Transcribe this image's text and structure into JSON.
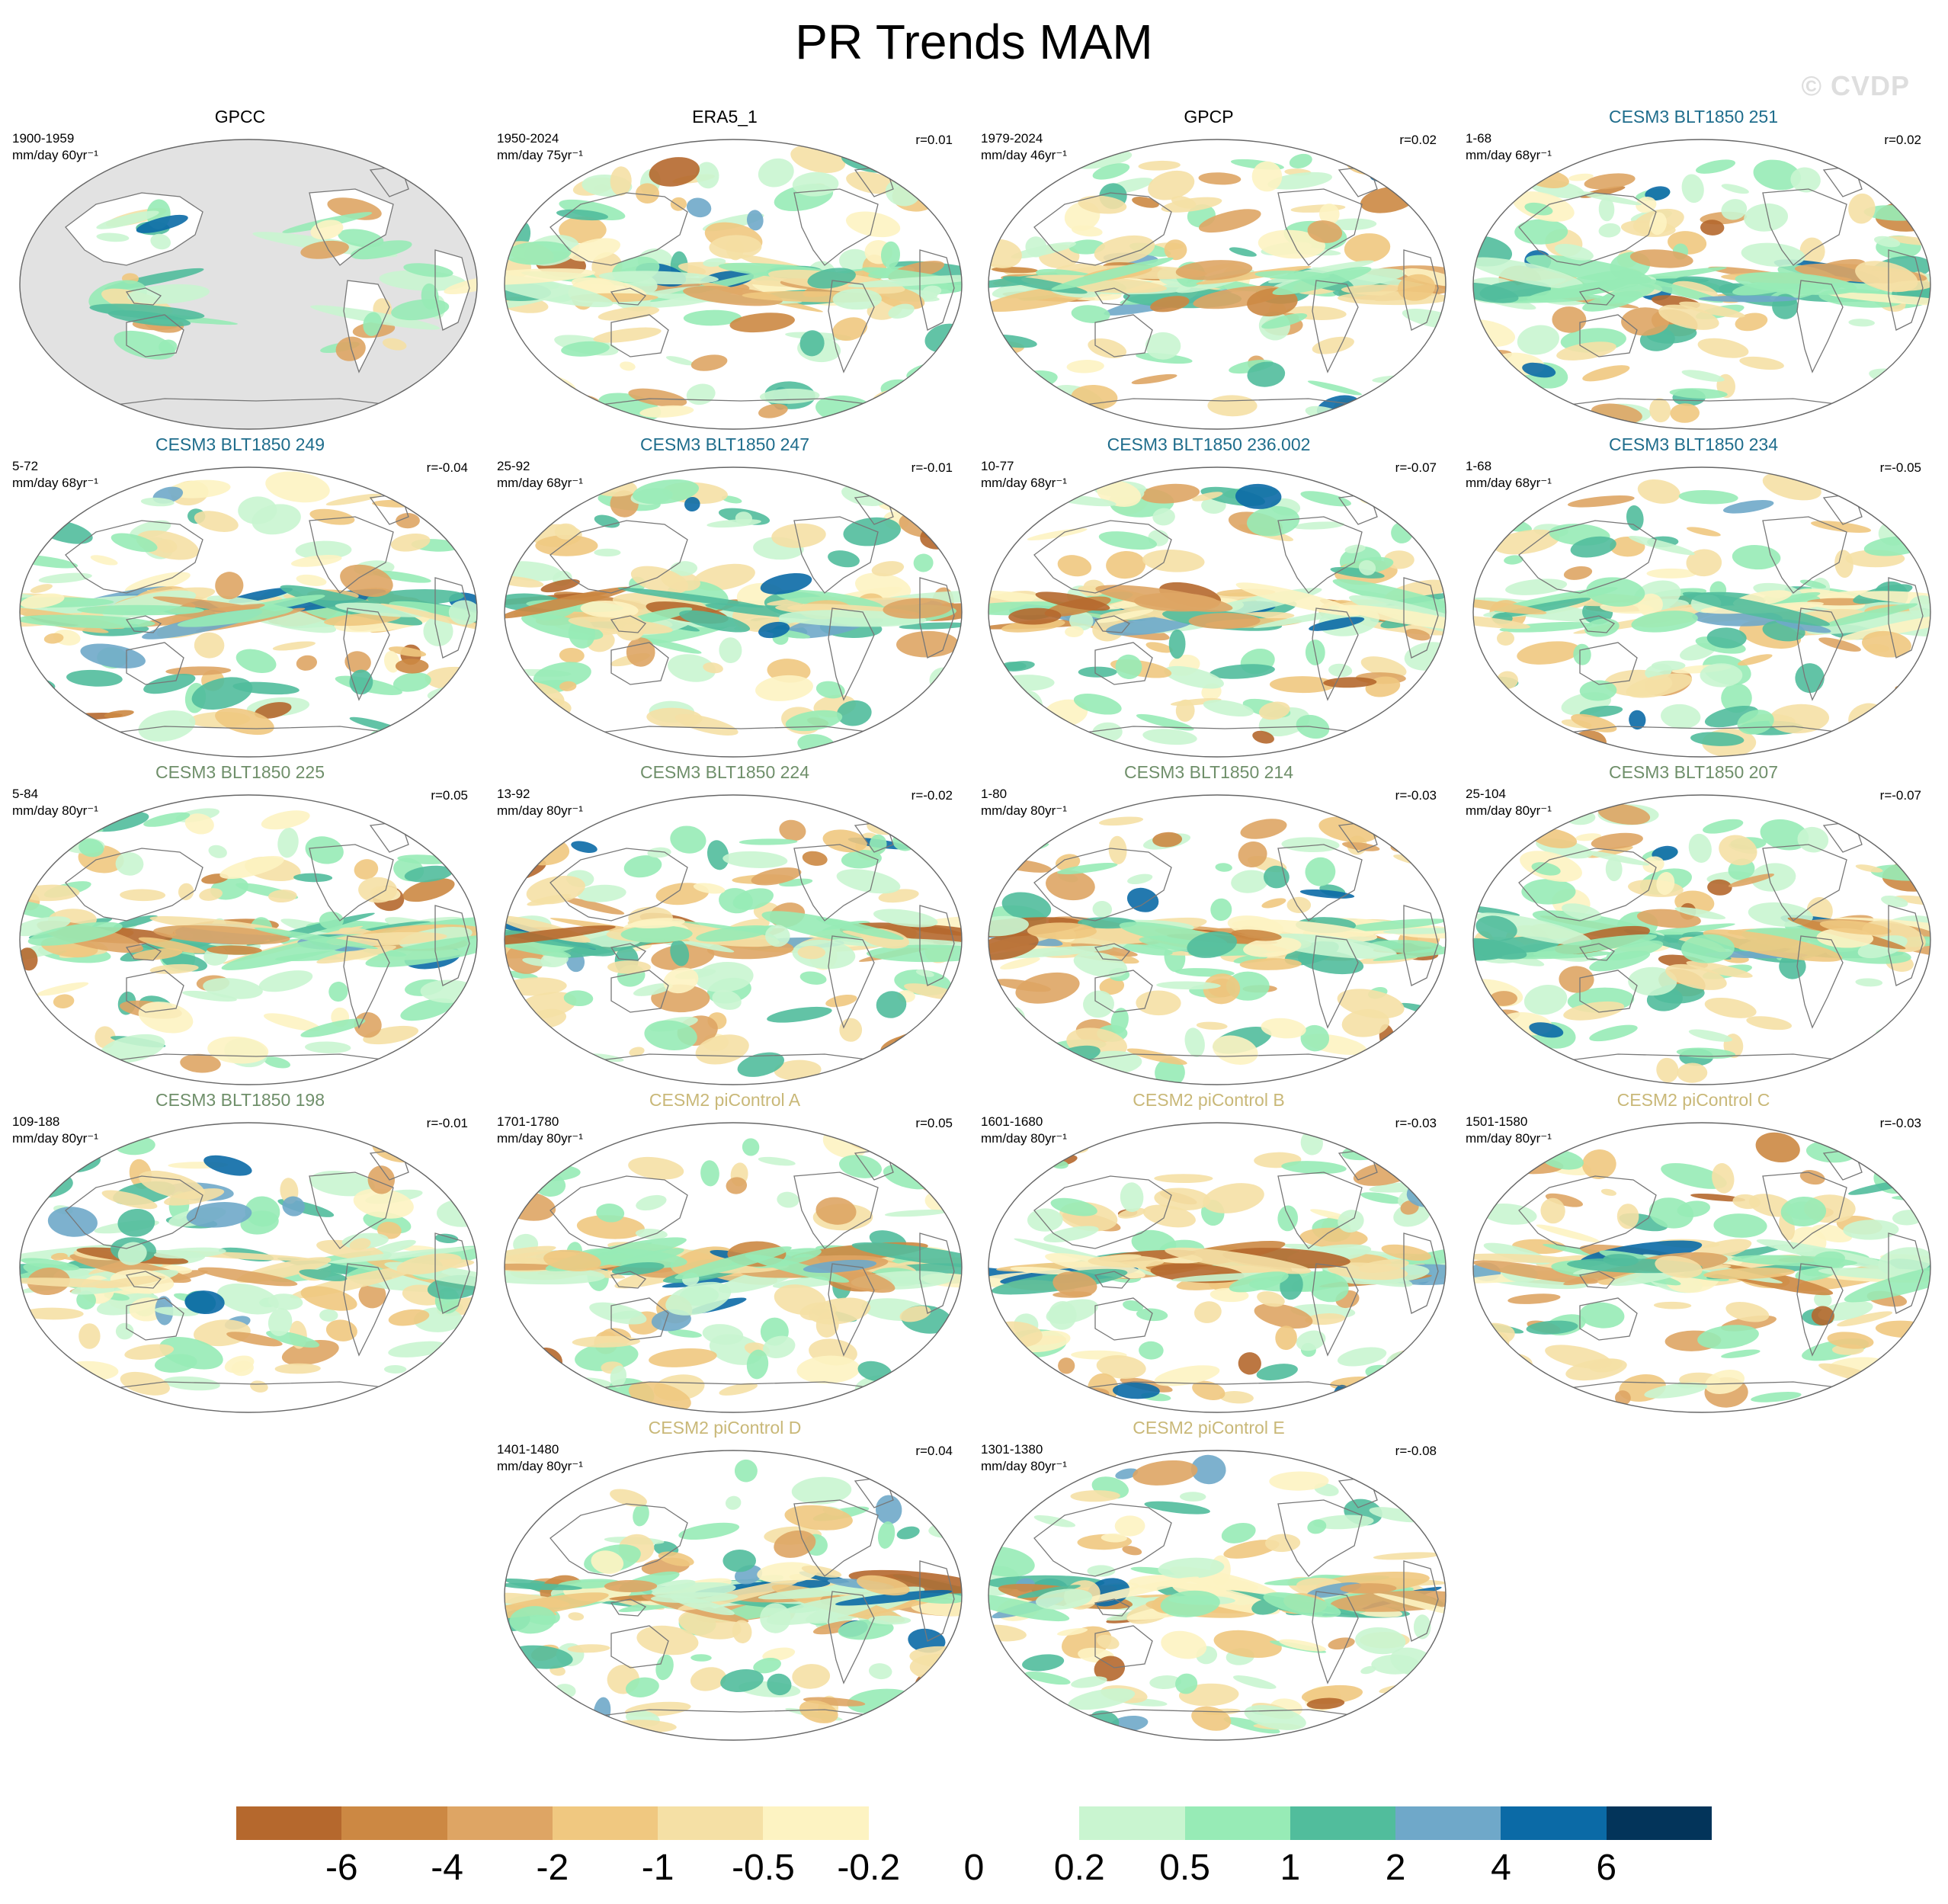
{
  "title": "PR Trends MAM",
  "watermark": "© CVDP",
  "panels": [
    {
      "title": "GPCC",
      "title_color": "#000000",
      "period": "1900-1959",
      "units": "mm/day 60yr⁻¹",
      "r": "",
      "land_only": true
    },
    {
      "title": "ERA5_1",
      "title_color": "#000000",
      "period": "1950-2024",
      "units": "mm/day 75yr⁻¹",
      "r": "r=0.01",
      "land_only": false
    },
    {
      "title": "GPCP",
      "title_color": "#000000",
      "period": "1979-2024",
      "units": "mm/day 46yr⁻¹",
      "r": "r=0.02",
      "land_only": false
    },
    {
      "title": "CESM3 BLT1850 251",
      "title_color": "#1f6d8c",
      "period": "1-68",
      "units": "mm/day 68yr⁻¹",
      "r": "r=0.02",
      "land_only": false
    },
    {
      "title": "CESM3 BLT1850 249",
      "title_color": "#1f6d8c",
      "period": "5-72",
      "units": "mm/day 68yr⁻¹",
      "r": "r=-0.04",
      "land_only": false
    },
    {
      "title": "CESM3 BLT1850 247",
      "title_color": "#1f6d8c",
      "period": "25-92",
      "units": "mm/day 68yr⁻¹",
      "r": "r=-0.01",
      "land_only": false
    },
    {
      "title": "CESM3 BLT1850 236.002",
      "title_color": "#1f6d8c",
      "period": "10-77",
      "units": "mm/day 68yr⁻¹",
      "r": "r=-0.07",
      "land_only": false
    },
    {
      "title": "CESM3 BLT1850 234",
      "title_color": "#1f6d8c",
      "period": "1-68",
      "units": "mm/day 68yr⁻¹",
      "r": "r=-0.05",
      "land_only": false
    },
    {
      "title": "CESM3 BLT1850 225",
      "title_color": "#6f8f6a",
      "period": "5-84",
      "units": "mm/day 80yr⁻¹",
      "r": "r=0.05",
      "land_only": false
    },
    {
      "title": "CESM3 BLT1850 224",
      "title_color": "#6f8f6a",
      "period": "13-92",
      "units": "mm/day 80yr⁻¹",
      "r": "r=-0.02",
      "land_only": false
    },
    {
      "title": "CESM3 BLT1850 214",
      "title_color": "#6f8f6a",
      "period": "1-80",
      "units": "mm/day 80yr⁻¹",
      "r": "r=-0.03",
      "land_only": false
    },
    {
      "title": "CESM3 BLT1850 207",
      "title_color": "#6f8f6a",
      "period": "25-104",
      "units": "mm/day 80yr⁻¹",
      "r": "r=-0.07",
      "land_only": false
    },
    {
      "title": "CESM3 BLT1850 198",
      "title_color": "#6f8f6a",
      "period": "109-188",
      "units": "mm/day 80yr⁻¹",
      "r": "r=-0.01",
      "land_only": false
    },
    {
      "title": "CESM2 piControl A",
      "title_color": "#c9b878",
      "period": "1701-1780",
      "units": "mm/day 80yr⁻¹",
      "r": "r=0.05",
      "land_only": false
    },
    {
      "title": "CESM2 piControl B",
      "title_color": "#c9b878",
      "period": "1601-1680",
      "units": "mm/day 80yr⁻¹",
      "r": "r=-0.03",
      "land_only": false
    },
    {
      "title": "CESM2 piControl C",
      "title_color": "#c9b878",
      "period": "1501-1580",
      "units": "mm/day 80yr⁻¹",
      "r": "r=-0.03",
      "land_only": false
    },
    {
      "title": "CESM2 piControl D",
      "title_color": "#c9b878",
      "period": "1401-1480",
      "units": "mm/day 80yr⁻¹",
      "r": "r=0.04",
      "land_only": false
    },
    {
      "title": "CESM2 piControl E",
      "title_color": "#c9b878",
      "period": "1301-1380",
      "units": "mm/day 80yr⁻¹",
      "r": "r=-0.08",
      "land_only": false
    }
  ],
  "colorbar": {
    "colors": [
      "#b5682d",
      "#cc8843",
      "#dea564",
      "#f0c880",
      "#f5e0a5",
      "#fdf3c2",
      "#ffffff",
      "#ffffff",
      "#c9f5d0",
      "#97ebb6",
      "#51bd9c",
      "#6fa8c9",
      "#0b6aa6",
      "#03345a"
    ],
    "labels": [
      "-6",
      "-4",
      "-2",
      "-1",
      "-0.5",
      "-0.2",
      "0",
      "0.2",
      "0.5",
      "1",
      "2",
      "4",
      "6"
    ]
  }
}
